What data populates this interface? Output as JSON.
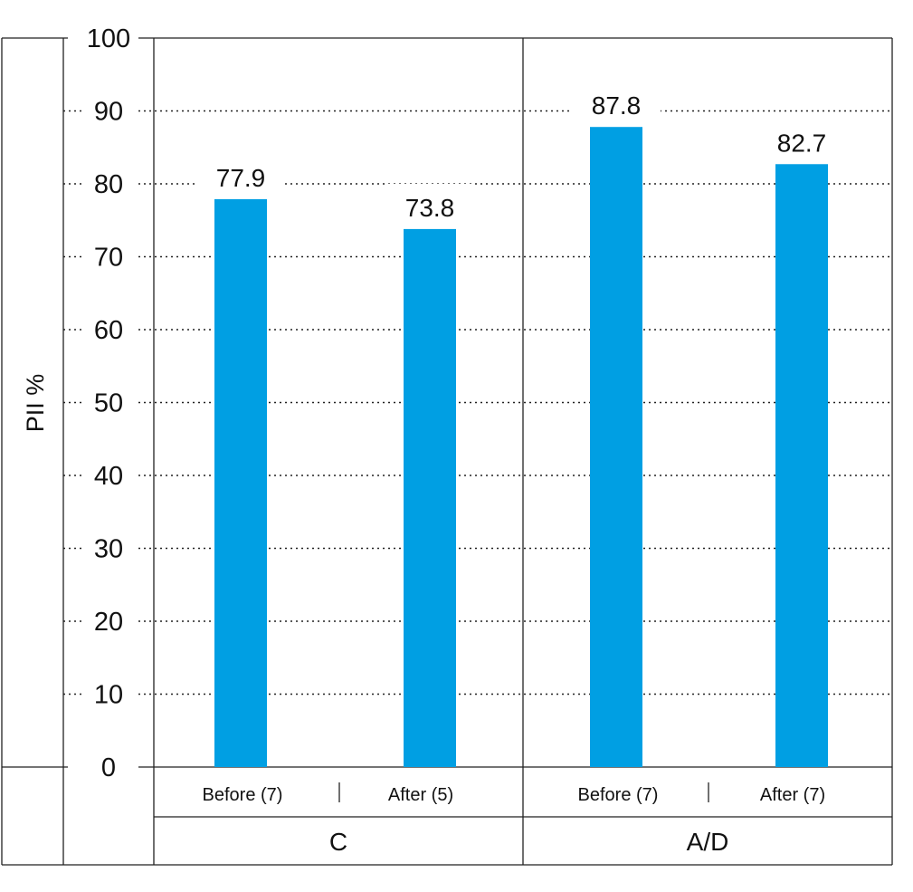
{
  "chart_data": {
    "type": "bar",
    "ylabel": "PII %",
    "ylim": [
      0,
      100
    ],
    "yticks": [
      0,
      10,
      20,
      30,
      40,
      50,
      60,
      70,
      80,
      90,
      100
    ],
    "grid": true,
    "groups": [
      {
        "label": "C",
        "bars": [
          {
            "label": "Before (7)",
            "value": 77.9,
            "value_label": "77.9"
          },
          {
            "label": "After (5)",
            "value": 73.8,
            "value_label": "73.8"
          }
        ]
      },
      {
        "label": "A/D",
        "bars": [
          {
            "label": "Before (7)",
            "value": 87.8,
            "value_label": "87.8"
          },
          {
            "label": "After (7)",
            "value": 82.7,
            "value_label": "82.7"
          }
        ]
      }
    ],
    "bar_color": "#009FE3"
  }
}
